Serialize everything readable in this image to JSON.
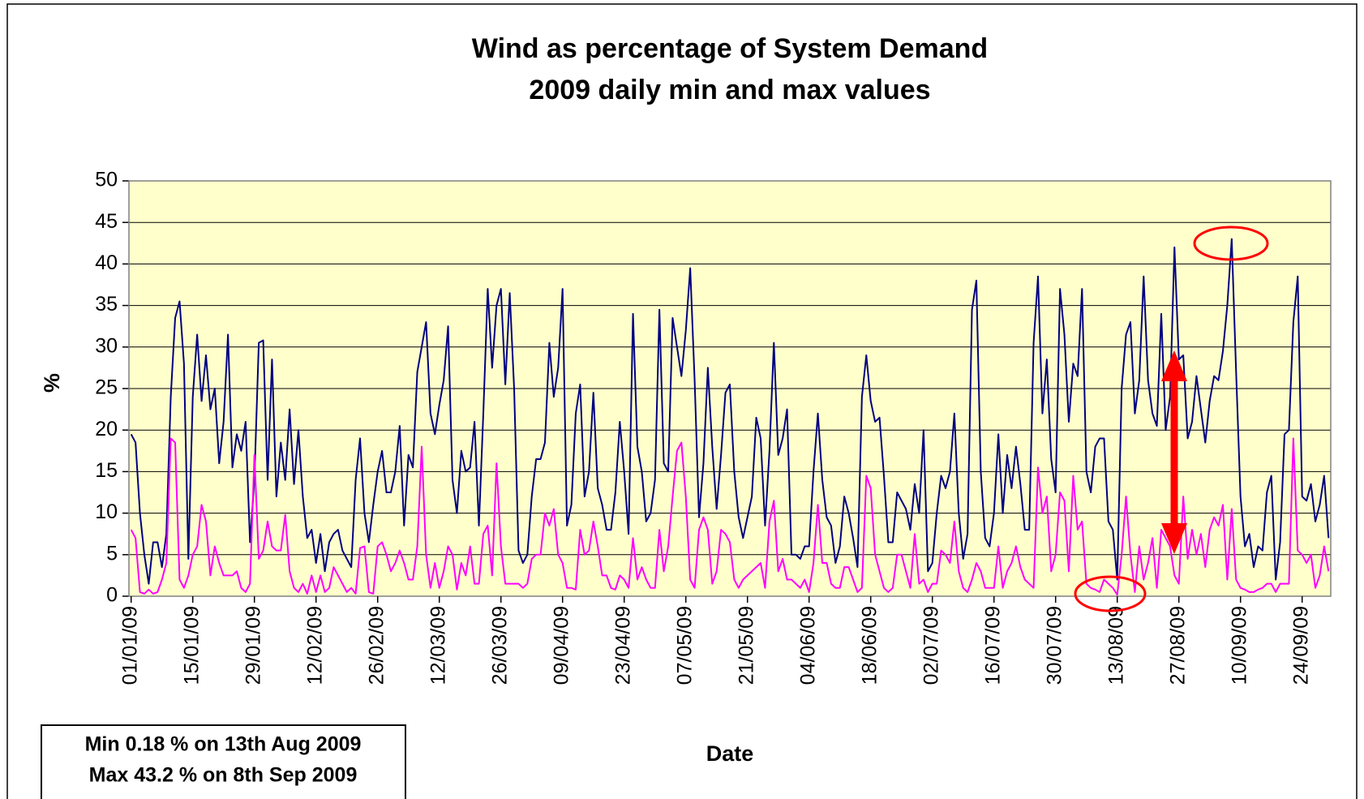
{
  "chart_data": {
    "type": "line",
    "title": [
      "Wind as percentage of System Demand",
      "2009 daily min and max values"
    ],
    "y_label": "%",
    "x_label": "Date",
    "annotations": [
      "Min 0.18 % on 13th Aug 2009",
      "Max 43.2 % on 8th Sep 2009"
    ],
    "ylim": [
      0,
      50
    ],
    "yticks": [
      0,
      5,
      10,
      15,
      20,
      25,
      30,
      35,
      40,
      45,
      50
    ],
    "grid": true,
    "background": "#ffffcc",
    "categories": [
      "01/01/09",
      null,
      null,
      null,
      null,
      null,
      null,
      null,
      null,
      null,
      null,
      null,
      null,
      null,
      "15/01/09",
      null,
      null,
      null,
      null,
      null,
      null,
      null,
      null,
      null,
      null,
      null,
      null,
      null,
      "29/01/09",
      null,
      null,
      null,
      null,
      null,
      null,
      null,
      null,
      null,
      null,
      null,
      null,
      null,
      "12/02/09",
      null,
      null,
      null,
      null,
      null,
      null,
      null,
      null,
      null,
      null,
      null,
      null,
      null,
      "26/02/09",
      null,
      null,
      null,
      null,
      null,
      null,
      null,
      null,
      null,
      null,
      null,
      null,
      null,
      "12/03/09",
      null,
      null,
      null,
      null,
      null,
      null,
      null,
      null,
      null,
      null,
      null,
      null,
      null,
      "26/03/09",
      null,
      null,
      null,
      null,
      null,
      null,
      null,
      null,
      null,
      null,
      null,
      null,
      null,
      "09/04/09",
      null,
      null,
      null,
      null,
      null,
      null,
      null,
      null,
      null,
      null,
      null,
      null,
      null,
      "23/04/09",
      null,
      null,
      null,
      null,
      null,
      null,
      null,
      null,
      null,
      null,
      null,
      null,
      null,
      "07/05/09",
      null,
      null,
      null,
      null,
      null,
      null,
      null,
      null,
      null,
      null,
      null,
      null,
      null,
      "21/05/09",
      null,
      null,
      null,
      null,
      null,
      null,
      null,
      null,
      null,
      null,
      null,
      null,
      null,
      "04/06/09",
      null,
      null,
      null,
      null,
      null,
      null,
      null,
      null,
      null,
      null,
      null,
      null,
      null,
      "18/06/09",
      null,
      null,
      null,
      null,
      null,
      null,
      null,
      null,
      null,
      null,
      null,
      null,
      null,
      "02/07/09",
      null,
      null,
      null,
      null,
      null,
      null,
      null,
      null,
      null,
      null,
      null,
      null,
      null,
      "16/07/09",
      null,
      null,
      null,
      null,
      null,
      null,
      null,
      null,
      null,
      null,
      null,
      null,
      null,
      "30/07/09",
      null,
      null,
      null,
      null,
      null,
      null,
      null,
      null,
      null,
      null,
      null,
      null,
      null,
      "13/08/09",
      null,
      null,
      null,
      null,
      null,
      null,
      null,
      null,
      null,
      null,
      null,
      null,
      null,
      "27/08/09",
      null,
      null,
      null,
      null,
      null,
      null,
      null,
      null,
      null,
      null,
      null,
      null,
      null,
      "10/09/09",
      null,
      null,
      null,
      null,
      null,
      null,
      null,
      null,
      null,
      null,
      null,
      null,
      null,
      "24/09/09",
      null,
      null,
      null,
      null,
      null,
      null
    ],
    "series": [
      {
        "color": "#000080",
        "values": [
          19.5,
          18.5,
          10,
          5,
          1.5,
          6.5,
          6.5,
          3.5,
          7.5,
          24,
          33.5,
          35.5,
          28,
          4.5,
          24,
          31.5,
          23.5,
          29,
          22.5,
          25,
          16,
          21,
          31.5,
          15.5,
          19.5,
          17.5,
          21,
          6.5,
          14,
          30.5,
          30.8,
          14,
          28.5,
          12,
          18.5,
          14,
          22.5,
          13.5,
          20,
          12,
          7,
          8,
          4,
          7.5,
          3,
          6.5,
          7.5,
          8,
          5.5,
          4.5,
          3.5,
          14,
          19,
          10,
          6.5,
          11,
          15,
          17.5,
          12.5,
          12.5,
          15,
          20.5,
          8.5,
          17,
          15.5,
          27,
          30,
          33,
          22,
          19.5,
          23,
          26,
          32.5,
          14,
          10,
          17.5,
          15,
          15.5,
          21,
          8.5,
          22,
          37,
          27.5,
          35,
          37,
          25.5,
          36.5,
          25,
          5.5,
          4,
          5,
          12,
          16.5,
          16.5,
          18.5,
          30.5,
          24,
          27.5,
          37,
          8.5,
          11,
          22,
          25.5,
          12,
          15,
          24.5,
          13,
          11,
          8,
          8,
          12.5,
          21,
          15,
          7.5,
          34,
          18,
          15,
          9,
          10,
          14,
          34.5,
          16,
          15,
          33.5,
          30,
          26.5,
          32,
          39.5,
          26,
          9.5,
          16,
          27.5,
          18,
          10.5,
          17,
          24.5,
          25.5,
          15,
          9.5,
          7,
          9.5,
          12,
          21.5,
          19,
          8.5,
          17.5,
          30.5,
          17,
          19,
          22.5,
          5,
          5,
          4.5,
          6,
          6,
          15,
          22,
          14,
          9.5,
          8.5,
          4,
          6,
          12,
          10,
          7,
          3.5,
          24,
          29,
          23.5,
          21,
          21.5,
          14.5,
          6.5,
          6.5,
          12.5,
          11.5,
          10.5,
          8,
          13.5,
          10,
          20,
          3,
          4,
          10,
          14.5,
          13,
          15,
          22,
          10,
          4.5,
          7.5,
          34.5,
          38,
          15,
          7,
          6,
          10,
          19.5,
          10,
          17,
          13,
          18,
          13.5,
          8,
          8,
          30.5,
          38.5,
          22,
          28.5,
          16.5,
          12.5,
          37,
          31.5,
          21,
          28,
          26.5,
          37,
          15,
          12.5,
          18,
          19,
          19,
          9,
          8,
          2,
          25,
          31.5,
          33,
          22,
          26,
          38.5,
          26,
          22,
          20.5,
          34,
          20,
          24,
          42,
          28.5,
          29,
          19,
          21,
          26.5,
          22.5,
          18.5,
          23.5,
          26.5,
          26,
          29.5,
          35,
          43,
          27,
          12,
          6,
          7.5,
          3.5,
          6,
          5.5,
          12.5,
          14.5,
          2,
          6.5,
          19.5,
          20,
          33,
          38.5,
          12,
          11.5,
          13.5,
          9,
          11,
          14.5,
          7
        ]
      },
      {
        "color": "#ff00ff",
        "values": [
          8,
          7,
          0.5,
          0.3,
          0.8,
          0.3,
          0.5,
          2,
          4,
          19,
          18.5,
          2,
          1,
          2.5,
          5,
          6,
          11,
          9,
          2.5,
          6,
          4,
          2.5,
          2.5,
          2.5,
          3,
          1,
          0.5,
          1.5,
          17,
          4.5,
          5.5,
          9,
          6,
          5.5,
          5.5,
          9.8,
          3,
          1,
          0.5,
          1.5,
          0.3,
          2.5,
          0.5,
          2.5,
          0.5,
          1,
          3.5,
          2.5,
          1.5,
          0.5,
          1,
          0.3,
          5.8,
          6,
          0.5,
          0.3,
          6,
          6.5,
          5,
          3,
          4,
          5.5,
          4,
          2,
          2,
          6,
          18,
          5,
          1,
          4,
          1,
          3,
          6,
          5,
          0.8,
          4,
          2.5,
          6,
          1.5,
          1.5,
          7.5,
          8.5,
          2.5,
          16,
          6,
          1.5,
          1.5,
          1.5,
          1.5,
          1,
          1.5,
          4.5,
          5,
          5,
          10,
          8.5,
          10.5,
          5,
          4,
          1,
          1,
          0.8,
          8,
          5,
          5.5,
          9,
          6,
          2.5,
          2.5,
          1,
          0.8,
          2.5,
          2,
          1,
          7,
          2,
          3.5,
          2,
          1,
          1,
          8,
          3,
          6,
          12,
          17.5,
          18.5,
          12,
          2,
          1,
          8,
          9.5,
          8,
          1.5,
          3,
          8,
          7.5,
          6.5,
          2,
          1,
          2,
          2.5,
          3,
          3.5,
          4,
          1,
          9,
          11.5,
          3,
          4.5,
          2,
          2,
          1.5,
          1,
          2,
          0.5,
          4,
          11,
          4,
          4,
          1.5,
          1,
          1,
          3.5,
          3.5,
          2,
          0.5,
          1,
          14.5,
          13,
          5,
          3,
          1,
          0.5,
          1,
          5,
          5,
          3,
          1,
          7.5,
          1.5,
          2,
          0.5,
          1.5,
          1.5,
          5.5,
          5,
          4,
          9,
          3,
          1,
          0.5,
          2,
          4,
          3,
          1,
          1,
          1,
          6,
          1,
          3,
          4,
          6,
          3.5,
          2,
          1.5,
          1,
          15.5,
          10,
          12,
          3,
          5,
          12.5,
          11.5,
          3,
          14.5,
          8,
          9,
          1.5,
          1,
          0.8,
          0.5,
          2,
          1.5,
          1,
          0.18,
          5,
          12,
          5,
          0.5,
          6,
          2,
          4,
          7,
          1,
          8,
          7,
          6,
          2.5,
          1.5,
          12,
          4.5,
          8,
          5,
          7.5,
          3.5,
          8,
          9.5,
          8.5,
          11,
          2,
          10.5,
          2,
          1,
          0.8,
          0.5,
          0.5,
          0.8,
          1,
          1.5,
          1.5,
          0.5,
          1.5,
          1.5,
          1.5,
          19,
          5.5,
          5,
          4,
          5,
          1,
          2.5,
          6,
          3
        ]
      }
    ]
  }
}
